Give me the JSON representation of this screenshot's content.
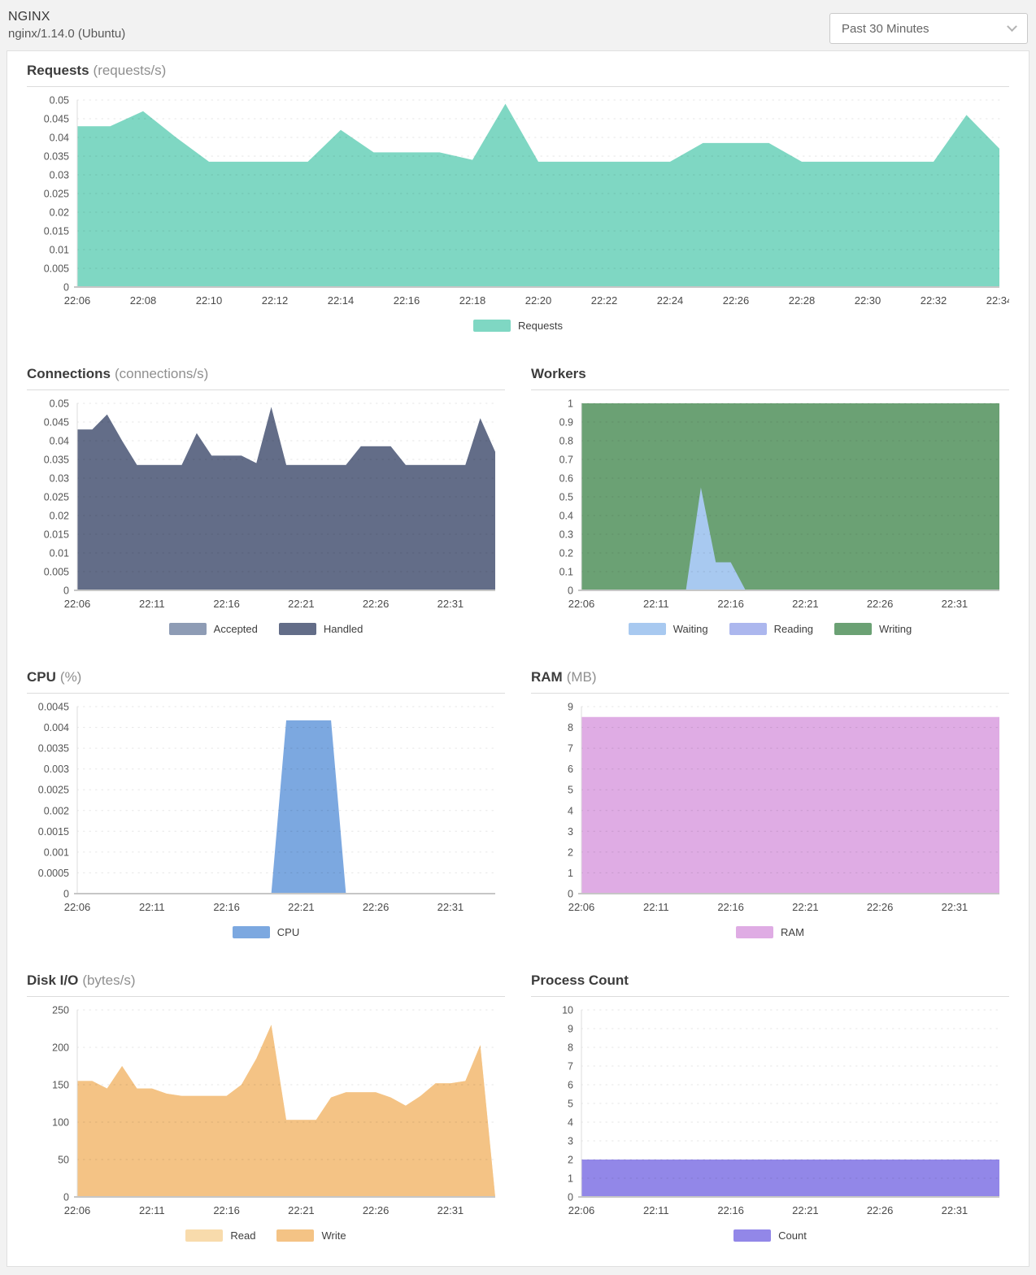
{
  "header": {
    "title": "NGINX",
    "subtitle": "nginx/1.14.0 (Ubuntu)",
    "time_range_selected": "Past 30 Minutes"
  },
  "icons": {
    "time_range_icon": "chevron-down"
  },
  "chart_data": [
    {
      "type": "area",
      "title": "Requests",
      "unit": "(requests/s)",
      "width": "full",
      "ylim": [
        0,
        0.05
      ],
      "ystep": 0.005,
      "grid": true,
      "legend_position": "bottom-center",
      "x_start": "22:06",
      "x_tick_step_minutes": 2,
      "x_tick_labels": [
        "22:06",
        "22:08",
        "22:10",
        "22:12",
        "22:14",
        "22:16",
        "22:18",
        "22:20",
        "22:22",
        "22:24",
        "22:26",
        "22:28",
        "22:30",
        "22:32",
        "22:34"
      ],
      "series": [
        {
          "name": "Requests",
          "color": "#7FD7C3",
          "values": [
            0.043,
            0.043,
            0.047,
            0.04,
            0.0335,
            0.0335,
            0.0335,
            0.0335,
            0.042,
            0.036,
            0.036,
            0.036,
            0.034,
            0.049,
            0.0335,
            0.0335,
            0.0335,
            0.0335,
            0.0335,
            0.0385,
            0.0385,
            0.0385,
            0.0335,
            0.0335,
            0.0335,
            0.0335,
            0.0335,
            0.046,
            0.037
          ]
        }
      ],
      "legend": [
        {
          "label": "Requests",
          "color": "#7FD7C3"
        }
      ]
    },
    {
      "type": "area",
      "title": "Connections",
      "unit": "(connections/s)",
      "width": "half",
      "ylim": [
        0,
        0.05
      ],
      "ystep": 0.005,
      "grid": true,
      "legend_position": "bottom-center",
      "x_start": "22:06",
      "x_tick_step_minutes": 5,
      "x_tick_labels": [
        "22:06",
        "22:11",
        "22:16",
        "22:21",
        "22:26",
        "22:31"
      ],
      "series": [
        {
          "name": "Accepted",
          "color": "#8E9CB5",
          "values": [
            0.043,
            0.043,
            0.047,
            0.04,
            0.0335,
            0.0335,
            0.0335,
            0.0335,
            0.042,
            0.036,
            0.036,
            0.036,
            0.034,
            0.049,
            0.0335,
            0.0335,
            0.0335,
            0.0335,
            0.0335,
            0.0385,
            0.0385,
            0.0385,
            0.0335,
            0.0335,
            0.0335,
            0.0335,
            0.0335,
            0.046,
            0.037
          ]
        },
        {
          "name": "Handled",
          "color": "#636D88",
          "values": [
            0.043,
            0.043,
            0.047,
            0.04,
            0.0335,
            0.0335,
            0.0335,
            0.0335,
            0.042,
            0.036,
            0.036,
            0.036,
            0.034,
            0.049,
            0.0335,
            0.0335,
            0.0335,
            0.0335,
            0.0335,
            0.0385,
            0.0385,
            0.0385,
            0.0335,
            0.0335,
            0.0335,
            0.0335,
            0.0335,
            0.046,
            0.037
          ]
        }
      ],
      "legend": [
        {
          "label": "Accepted",
          "color": "#8E9CB5"
        },
        {
          "label": "Handled",
          "color": "#636D88"
        }
      ]
    },
    {
      "type": "area",
      "title": "Workers",
      "unit": "",
      "width": "half",
      "ylim": [
        0,
        1
      ],
      "ystep": 0.1,
      "grid": true,
      "legend_position": "bottom-center",
      "x_start": "22:06",
      "x_tick_step_minutes": 5,
      "x_tick_labels": [
        "22:06",
        "22:11",
        "22:16",
        "22:21",
        "22:26",
        "22:31"
      ],
      "series": [
        {
          "name": "Writing",
          "color": "#6BA174",
          "values": [
            1,
            1,
            1,
            1,
            1,
            1,
            1,
            1,
            1,
            1,
            1,
            1,
            1,
            1,
            1,
            1,
            1,
            1,
            1,
            1,
            1,
            1,
            1,
            1,
            1,
            1,
            1,
            1,
            1
          ]
        },
        {
          "name": "Reading",
          "color": "#ACB7EE",
          "values": [
            0,
            0,
            0,
            0,
            0,
            0,
            0,
            0,
            0,
            0,
            0,
            0,
            0,
            0,
            0,
            0,
            0,
            0,
            0,
            0,
            0,
            0,
            0,
            0,
            0,
            0,
            0,
            0,
            0
          ]
        },
        {
          "name": "Waiting",
          "color": "#A8C9F0",
          "values": [
            0,
            0,
            0,
            0,
            0,
            0,
            0,
            0,
            0.55,
            0.15,
            0.15,
            0,
            0,
            0,
            0,
            0,
            0,
            0,
            0,
            0,
            0,
            0,
            0,
            0,
            0,
            0,
            0,
            0,
            0
          ]
        }
      ],
      "legend": [
        {
          "label": "Waiting",
          "color": "#A8C9F0"
        },
        {
          "label": "Reading",
          "color": "#ACB7EE"
        },
        {
          "label": "Writing",
          "color": "#6BA174"
        }
      ]
    },
    {
      "type": "area",
      "title": "CPU",
      "unit": "(%)",
      "width": "half",
      "ylim": [
        0,
        0.0045
      ],
      "ystep": 0.0005,
      "grid": true,
      "legend_position": "bottom-center",
      "x_start": "22:06",
      "x_tick_step_minutes": 5,
      "x_tick_labels": [
        "22:06",
        "22:11",
        "22:16",
        "22:21",
        "22:26",
        "22:31"
      ],
      "series": [
        {
          "name": "CPU",
          "color": "#7CA8E0",
          "values": [
            0,
            0,
            0,
            0,
            0,
            0,
            0,
            0,
            0,
            0,
            0,
            0,
            0,
            0,
            0.00417,
            0.00417,
            0.00417,
            0.00417,
            0,
            0,
            0,
            0,
            0,
            0,
            0,
            0,
            0,
            0,
            0
          ]
        }
      ],
      "legend": [
        {
          "label": "CPU",
          "color": "#7CA8E0"
        }
      ]
    },
    {
      "type": "area",
      "title": "RAM",
      "unit": "(MB)",
      "width": "half",
      "ylim": [
        0,
        9
      ],
      "ystep": 1,
      "grid": true,
      "legend_position": "bottom-center",
      "x_start": "22:06",
      "x_tick_step_minutes": 5,
      "x_tick_labels": [
        "22:06",
        "22:11",
        "22:16",
        "22:21",
        "22:26",
        "22:31"
      ],
      "series": [
        {
          "name": "RAM",
          "color": "#DFACE4",
          "values": [
            8.5,
            8.5,
            8.5,
            8.5,
            8.5,
            8.5,
            8.5,
            8.5,
            8.5,
            8.5,
            8.5,
            8.5,
            8.5,
            8.5,
            8.5,
            8.5,
            8.5,
            8.5,
            8.5,
            8.5,
            8.5,
            8.5,
            8.5,
            8.5,
            8.5,
            8.5,
            8.5,
            8.5,
            8.5
          ]
        }
      ],
      "legend": [
        {
          "label": "RAM",
          "color": "#DFACE4"
        }
      ]
    },
    {
      "type": "area",
      "title": "Disk I/O",
      "unit": "(bytes/s)",
      "width": "half",
      "ylim": [
        0,
        250
      ],
      "ystep": 50,
      "grid": true,
      "legend_position": "bottom-center",
      "x_start": "22:06",
      "x_tick_step_minutes": 5,
      "x_tick_labels": [
        "22:06",
        "22:11",
        "22:16",
        "22:21",
        "22:26",
        "22:31"
      ],
      "series": [
        {
          "name": "Read",
          "color": "#F8DBAC",
          "values": [
            155,
            155,
            145,
            175,
            145,
            145,
            138,
            135,
            135,
            135,
            135,
            150,
            185,
            230,
            103,
            103,
            103,
            133,
            140,
            140,
            140,
            133,
            122,
            135,
            152,
            152,
            155,
            203,
            0
          ]
        },
        {
          "name": "Write",
          "color": "#F4C385",
          "values": [
            155,
            155,
            145,
            175,
            145,
            145,
            138,
            135,
            135,
            135,
            135,
            150,
            185,
            230,
            103,
            103,
            103,
            133,
            140,
            140,
            140,
            133,
            122,
            135,
            152,
            152,
            155,
            203,
            0
          ]
        }
      ],
      "legend": [
        {
          "label": "Read",
          "color": "#F8DBAC"
        },
        {
          "label": "Write",
          "color": "#F4C385"
        }
      ]
    },
    {
      "type": "area",
      "title": "Process Count",
      "unit": "",
      "width": "half",
      "ylim": [
        0,
        10
      ],
      "ystep": 1,
      "grid": true,
      "legend_position": "bottom-center",
      "x_start": "22:06",
      "x_tick_step_minutes": 5,
      "x_tick_labels": [
        "22:06",
        "22:11",
        "22:16",
        "22:21",
        "22:26",
        "22:31"
      ],
      "series": [
        {
          "name": "Count",
          "color": "#9287E8",
          "values": [
            2,
            2,
            2,
            2,
            2,
            2,
            2,
            2,
            2,
            2,
            2,
            2,
            2,
            2,
            2,
            2,
            2,
            2,
            2,
            2,
            2,
            2,
            2,
            2,
            2,
            2,
            2,
            2,
            2
          ]
        }
      ],
      "legend": [
        {
          "label": "Count",
          "color": "#9287E8"
        }
      ]
    }
  ]
}
